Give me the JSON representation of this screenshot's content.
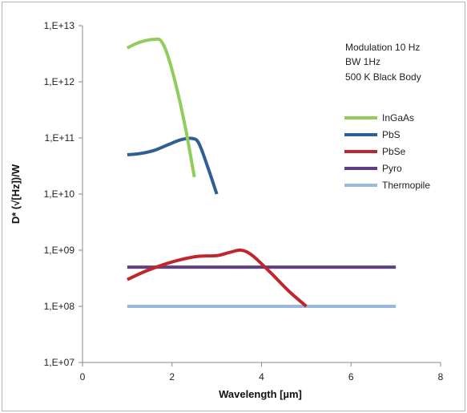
{
  "chart_data": {
    "type": "line",
    "title": "",
    "xlabel": "Wavelength [µm]",
    "ylabel": "D* (√[Hz])/W",
    "xlim": [
      0,
      8
    ],
    "ylim_log10": [
      7,
      13
    ],
    "y_scale": "log",
    "grid": false,
    "legend_position": "right",
    "x_ticks": [
      0,
      2,
      4,
      6,
      8
    ],
    "x_tick_labels": [
      "0",
      "2",
      "4",
      "6",
      "8"
    ],
    "y_ticks_log10": [
      7,
      8,
      9,
      10,
      11,
      12,
      13
    ],
    "y_tick_labels": [
      "1,E+07",
      "1,E+08",
      "1,E+09",
      "1,E+10",
      "1,E+11",
      "1,E+12",
      "1,E+13"
    ],
    "annotations": [
      "Modulation 10 Hz",
      "BW 1Hz",
      "500 K Black Body"
    ],
    "series": [
      {
        "name": "InGaAs",
        "color": "#8fce5b",
        "x": [
          1.0,
          1.2,
          1.4,
          1.6,
          1.75,
          1.9,
          2.1,
          2.3,
          2.5
        ],
        "y": [
          4000000000000.0,
          4800000000000.0,
          5400000000000.0,
          5700000000000.0,
          5400000000000.0,
          3000000000000.0,
          800000000000.0,
          150000000000.0,
          20000000000.0
        ]
      },
      {
        "name": "PbS",
        "color": "#2f5f95",
        "x": [
          1.0,
          1.3,
          1.6,
          1.9,
          2.2,
          2.45,
          2.6,
          2.8,
          3.0
        ],
        "y": [
          50000000000.0,
          53000000000.0,
          60000000000.0,
          75000000000.0,
          93000000000.0,
          98000000000.0,
          80000000000.0,
          30000000000.0,
          10000000000.0
        ]
      },
      {
        "name": "PbSe",
        "color": "#c0272d",
        "x": [
          1.0,
          1.4,
          1.8,
          2.2,
          2.6,
          3.0,
          3.3,
          3.55,
          3.8,
          4.2,
          4.6,
          5.0
        ],
        "y": [
          300000000.0,
          420000000.0,
          550000000.0,
          680000000.0,
          780000000.0,
          800000000.0,
          920000000.0,
          1000000000.0,
          800000000.0,
          400000000.0,
          190000000.0,
          100000000.0
        ]
      },
      {
        "name": "Pyro",
        "color": "#5e3f86",
        "x": [
          1.0,
          7.0
        ],
        "y": [
          500000000.0,
          500000000.0
        ]
      },
      {
        "name": "Thermopile",
        "color": "#9ab8dd",
        "x": [
          1.0,
          7.0
        ],
        "y": [
          100000000.0,
          100000000.0
        ]
      }
    ]
  }
}
